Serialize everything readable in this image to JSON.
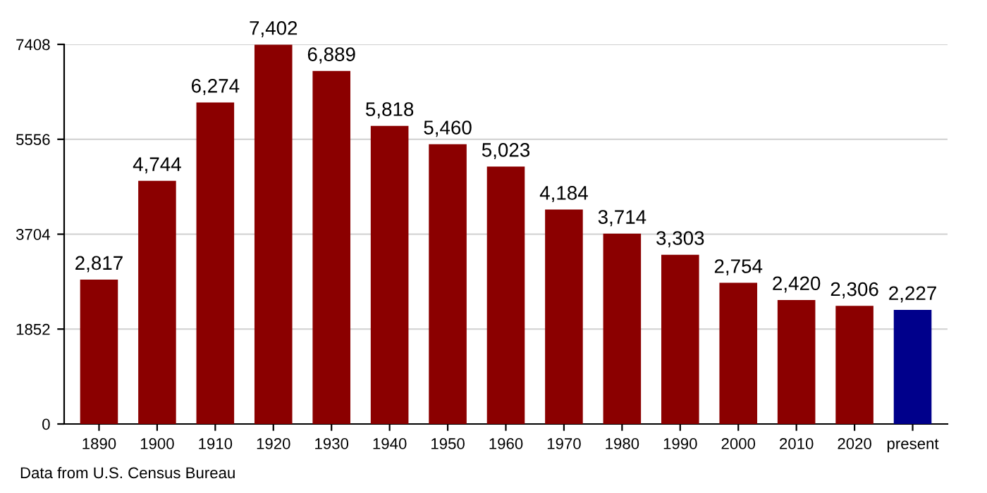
{
  "chart_data": {
    "type": "bar",
    "categories": [
      "1890",
      "1900",
      "1910",
      "1920",
      "1930",
      "1940",
      "1950",
      "1960",
      "1970",
      "1980",
      "1990",
      "2000",
      "2010",
      "2020",
      "present"
    ],
    "values": [
      2817,
      4744,
      6274,
      7402,
      6889,
      5818,
      5460,
      5023,
      4184,
      3714,
      3303,
      2754,
      2420,
      2306,
      2227
    ],
    "colors": [
      "#8b0000",
      "#8b0000",
      "#8b0000",
      "#8b0000",
      "#8b0000",
      "#8b0000",
      "#8b0000",
      "#8b0000",
      "#8b0000",
      "#8b0000",
      "#8b0000",
      "#8b0000",
      "#8b0000",
      "#8b0000",
      "#00008b"
    ],
    "value_labels": [
      "2,817",
      "4,744",
      "6,274",
      "7,402",
      "6,889",
      "5,818",
      "5,460",
      "5,023",
      "4,184",
      "3,714",
      "3,303",
      "2,754",
      "2,420",
      "2,306",
      "2,227"
    ],
    "ylim": [
      0,
      7408
    ],
    "yticks": [
      0,
      1852,
      3704,
      5556,
      7408
    ],
    "grid": "y",
    "annotations": [
      "Data from U.S. Census Bureau"
    ]
  }
}
